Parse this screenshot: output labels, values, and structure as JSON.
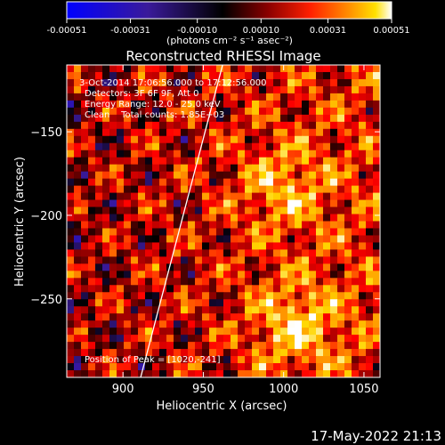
{
  "colors": {
    "background": "#000000",
    "text": "#ffffff",
    "colormap": [
      "#0000ff",
      "#3a1a9a",
      "#000000",
      "#8b0000",
      "#ff0000",
      "#ff8c00",
      "#ffd700",
      "#ffffff"
    ]
  },
  "colorbar": {
    "ticks": [
      "-0.00051",
      "-0.00031",
      "-0.00010",
      "0.00010",
      "0.00031",
      "0.00051"
    ],
    "tick_values": [
      -0.00051,
      -0.00031,
      -0.0001,
      0.0001,
      0.00031,
      0.00051
    ],
    "range": [
      -0.00051,
      0.00051
    ],
    "units_label": "(photons cm⁻² s⁻¹ asec⁻²)"
  },
  "chart_data": {
    "type": "heatmap",
    "title": "Reconstructed RHESSI Image",
    "xlabel": "Heliocentric X (arcsec)",
    "ylabel": "Heliocentric Y (arcsec)",
    "xlim": [
      865,
      1060
    ],
    "ylim": [
      -297,
      -110
    ],
    "xticks": [
      900,
      950,
      1000,
      1050
    ],
    "yticks": [
      -150,
      -200,
      -250
    ],
    "xtick_labels": [
      "900",
      "950",
      "1000",
      "1050"
    ],
    "ytick_labels": [
      "−150",
      "−200",
      "−250"
    ],
    "grid": false,
    "limb_line": [
      [
        911,
        -297
      ],
      [
        962,
        -110
      ]
    ],
    "peak_position": [
      1020,
      -241
    ],
    "annotations": {
      "time": "3-Oct-2014 17:06:56.000 to 17:12:56.000",
      "detectors": "Detectors: 3F 6F 9F, Att 0",
      "energy": "Energy Range: 12.0 - 25.0 keV",
      "clean": "Clean    Total counts: 1.85E+03",
      "peak": "Position of Peak = [1020,-241]"
    }
  },
  "footer": {
    "timestamp": "17-May-2022 21:13"
  }
}
